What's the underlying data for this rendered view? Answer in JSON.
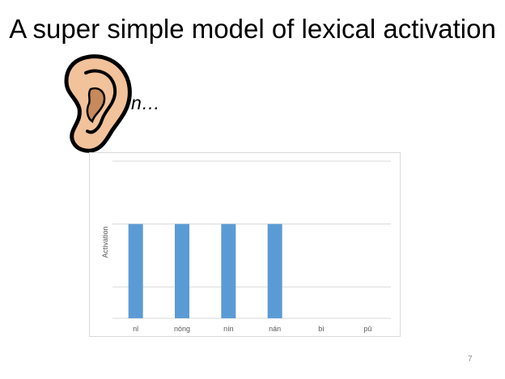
{
  "slide": {
    "title": "A super simple model of lexical activation",
    "spoken_input": "n…",
    "page_number": "7"
  },
  "icons": {
    "ear": "ear-icon"
  },
  "colors": {
    "bar": "#5b9bd5",
    "grid": "#d9d9d9",
    "ear_skin": "#f2c29b",
    "ear_inner": "#c68a5c"
  },
  "chart_data": {
    "type": "bar",
    "categories": [
      "nǐ",
      "nóng",
      "nín",
      "nán",
      "bì",
      "pǔ"
    ],
    "values": [
      3,
      3,
      3,
      3,
      0,
      0
    ],
    "ylabel": "Activation",
    "xlabel": "",
    "title": "",
    "ylim": [
      0,
      5
    ],
    "grid": true,
    "legend": "none"
  }
}
